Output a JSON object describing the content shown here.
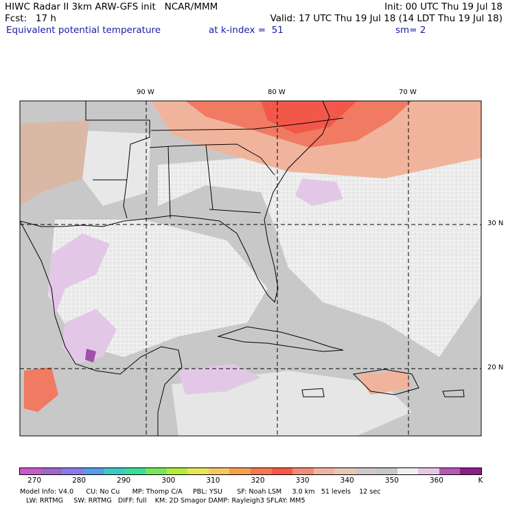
{
  "header": {
    "line1_left": "HIWC Radar II 3km ARW-GFS init   NCAR/MMM",
    "line1_right": "Init: 00 UTC Thu 19 Jul 18",
    "line2_left": "Fcst:   17 h",
    "line2_right": "Valid: 17 UTC Thu 19 Jul 18 (14 LDT Thu 19 Jul 18)",
    "line3_left": "Equivalent potential temperature",
    "line3_mid": "at k-index =  51",
    "line3_right": "sm= 2"
  },
  "map": {
    "lon_labels": [
      "90 W",
      "80 W",
      "70 W"
    ],
    "lat_labels": [
      "30 N",
      "20 N"
    ]
  },
  "colorbar": {
    "colors": [
      "#c85ac8",
      "#a065c8",
      "#8a7ae6",
      "#5a9ae6",
      "#3cc8c8",
      "#3cdc96",
      "#78e65a",
      "#b4eb3c",
      "#e6e65a",
      "#f5c864",
      "#f5a050",
      "#f57850",
      "#f55a46",
      "#f08c78",
      "#f0b4a0",
      "#e6c8b4",
      "#d2c8c8",
      "#c8c8c8",
      "#f0f0f0",
      "#e6c8e6",
      "#b45ab4",
      "#8c1e8c"
    ],
    "labels": [
      "270",
      "280",
      "290",
      "300",
      "310",
      "320",
      "330",
      "340",
      "350",
      "360",
      "K"
    ]
  },
  "model_info": {
    "line1": "Model Info: V4.0      CU: No Cu      MP: Thomp C/A     PBL: YSU       SF: Noah LSM     3.0 km   51 levels    12 sec",
    "line2": "   LW: RRTMG     SW: RRTMG   DIFF: full    KM: 2D Smagor DAMP: Rayleigh3 SFLAY: MM5"
  }
}
